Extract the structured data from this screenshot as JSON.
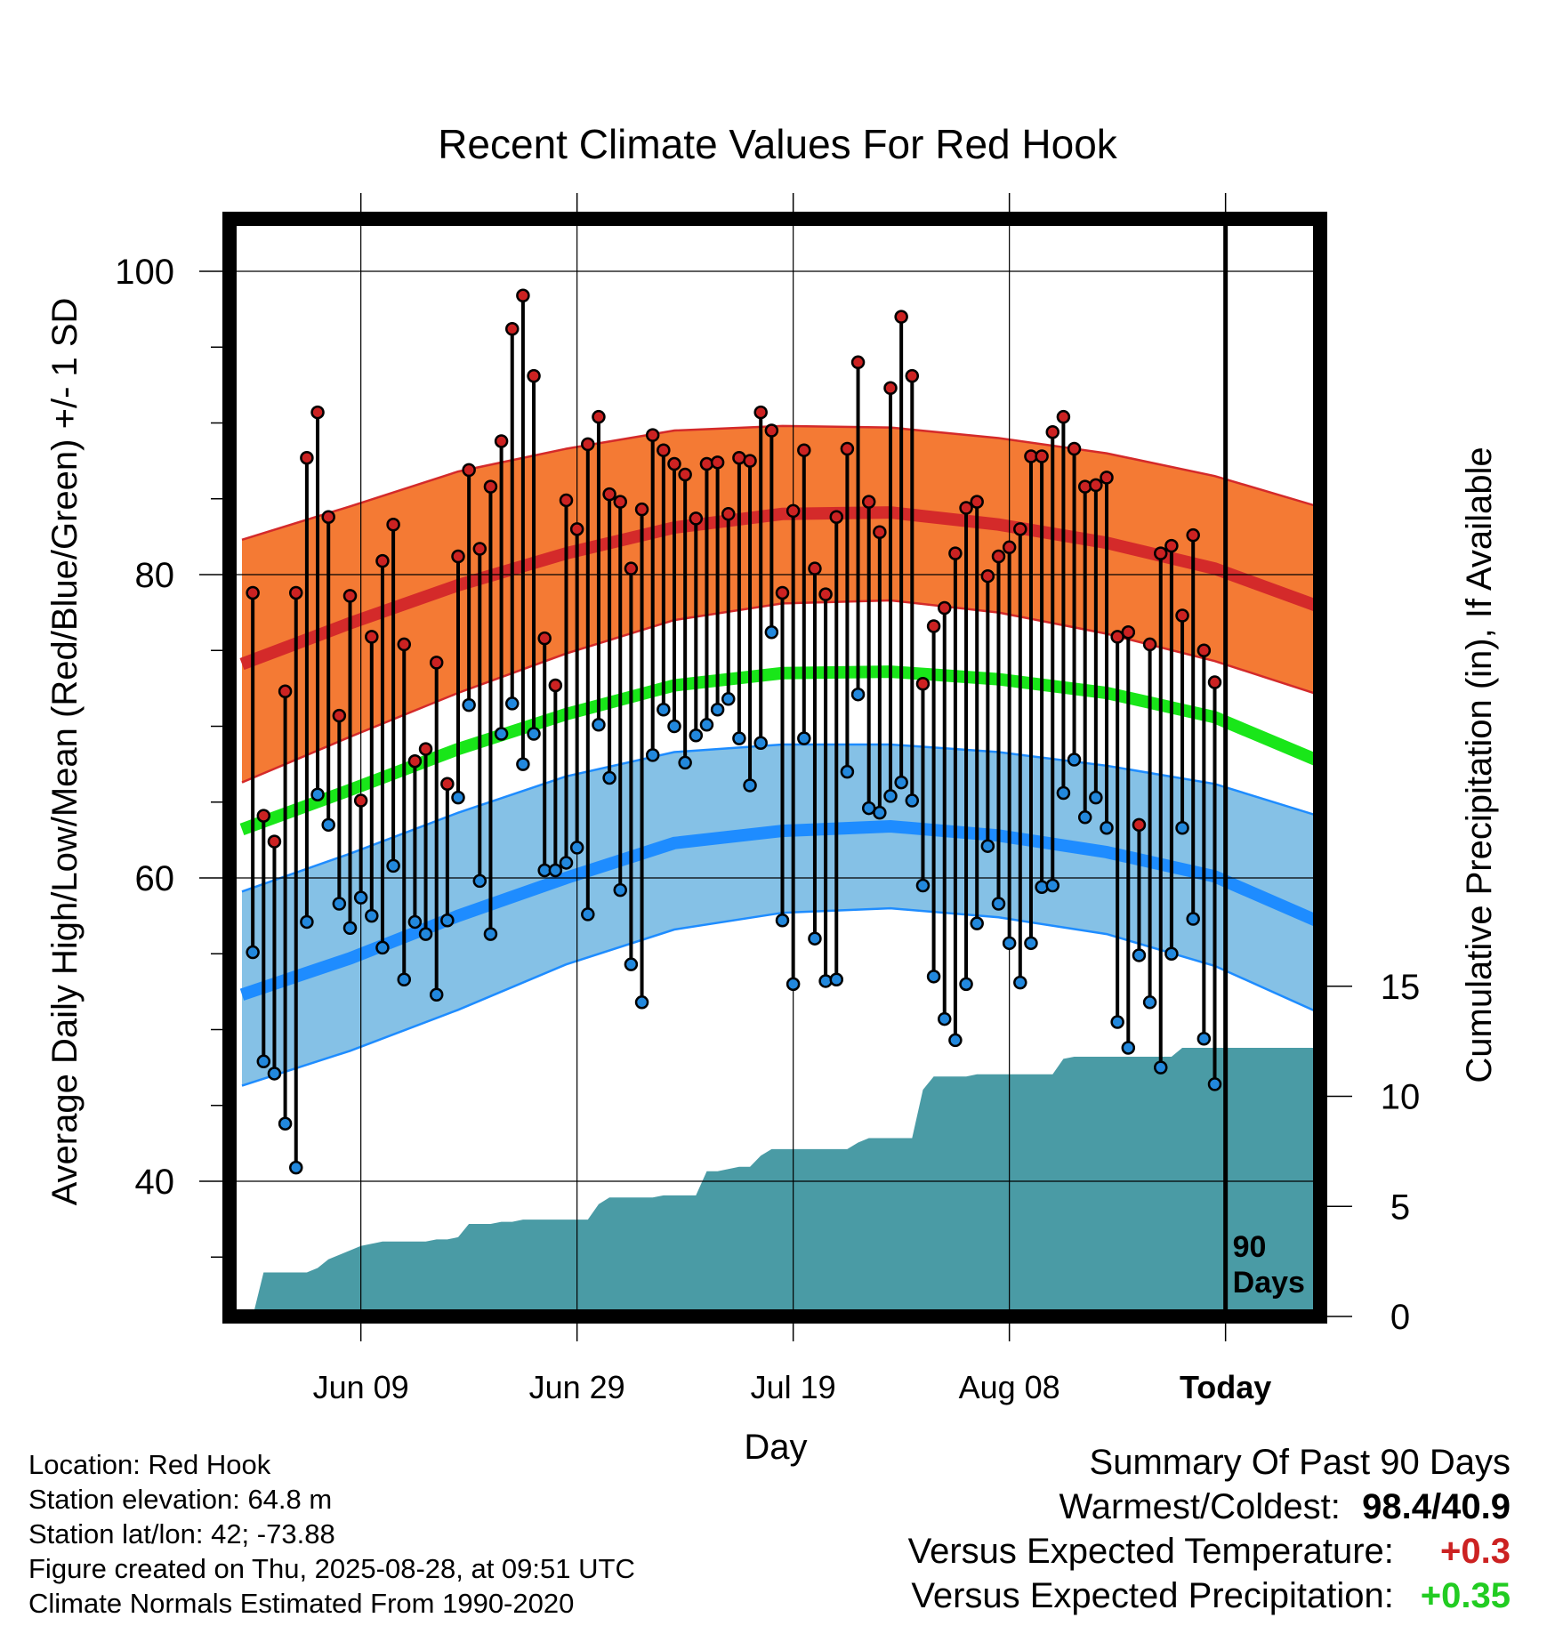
{
  "chart_data": {
    "type": "line",
    "title": "Recent Climate Values For Red Hook",
    "xlabel": "Day",
    "ylabel": "Average Daily High/Low/Mean (Red/Blue/Green) +/- 1 SD",
    "y2label": "Cumulative Precipitation (in), If Available",
    "ylim": [
      31,
      104
    ],
    "y2lim": [
      0,
      20
    ],
    "y_ticks": [
      40,
      60,
      80,
      100
    ],
    "y2_ticks": [
      0,
      5,
      10,
      15
    ],
    "x_tick_labels": [
      "Jun 09",
      "Jun 29",
      "Jul 19",
      "Aug 08",
      "Today"
    ],
    "x_tick_days": [
      11,
      31,
      51,
      71,
      91
    ],
    "x_range_days": [
      0,
      101
    ],
    "today_marker": {
      "day": 91,
      "label_line1": "90",
      "label_line2": "Days"
    },
    "grid": true,
    "colors": {
      "high_line": "#d42a2a",
      "high_band": "#f47a34",
      "low_line": "#1e8cff",
      "low_band": "#85c1e6",
      "mean_line": "#19e619",
      "precip_fill": "#4a9ba5",
      "high_dot": "#cc2222",
      "low_dot": "#2288dd",
      "warm_value": "#cc2222",
      "precip_value": "#22cc22"
    },
    "normal_curve_days": [
      0,
      10,
      20,
      30,
      40,
      50,
      60,
      70,
      80,
      90,
      100
    ],
    "normal_high": [
      74.1,
      76.8,
      79.3,
      81.4,
      83.1,
      84.0,
      84.1,
      83.3,
      82.1,
      80.4,
      77.8
    ],
    "normal_high_sd_upper": [
      82.3,
      84.5,
      86.8,
      88.3,
      89.5,
      89.8,
      89.7,
      89.0,
      88.0,
      86.5,
      84.4
    ],
    "normal_high_sd_lower": [
      66.3,
      69.3,
      72.2,
      74.8,
      77.0,
      78.1,
      78.3,
      77.5,
      76.1,
      74.3,
      72.0
    ],
    "normal_mean": [
      63.2,
      65.8,
      68.5,
      70.8,
      72.7,
      73.5,
      73.6,
      73.1,
      72.2,
      70.6,
      67.6
    ],
    "normal_low": [
      52.3,
      54.7,
      57.5,
      60.0,
      62.3,
      63.1,
      63.4,
      62.8,
      61.7,
      60.1,
      57.0
    ],
    "normal_low_sd_upper": [
      59.1,
      61.6,
      64.3,
      66.7,
      68.3,
      68.8,
      68.8,
      68.3,
      67.4,
      66.2,
      64.0
    ],
    "normal_low_sd_lower": [
      46.3,
      48.6,
      51.3,
      54.3,
      56.6,
      57.7,
      58.0,
      57.4,
      56.3,
      54.2,
      51.0
    ],
    "series": [
      {
        "name": "Daily High",
        "days": [
          1,
          2,
          3,
          4,
          5,
          6,
          7,
          8,
          9,
          10,
          11,
          12,
          13,
          14,
          15,
          16,
          17,
          18,
          19,
          20,
          21,
          22,
          23,
          24,
          25,
          26,
          27,
          28,
          29,
          30,
          31,
          32,
          33,
          34,
          35,
          36,
          37,
          38,
          39,
          40,
          41,
          42,
          43,
          44,
          45,
          46,
          47,
          48,
          49,
          50,
          51,
          52,
          53,
          54,
          55,
          56,
          57,
          58,
          59,
          60,
          61,
          62,
          63,
          64,
          65,
          66,
          67,
          68,
          69,
          70,
          71,
          72,
          73,
          74,
          75,
          76,
          77,
          78,
          79,
          80,
          81,
          82,
          83,
          84,
          85,
          86,
          87,
          88,
          89,
          90
        ],
        "values": [
          78.8,
          64.1,
          62.4,
          72.3,
          78.8,
          87.7,
          90.7,
          83.8,
          70.7,
          78.6,
          65.1,
          75.9,
          80.9,
          83.3,
          75.4,
          67.7,
          68.5,
          74.2,
          66.2,
          81.2,
          86.9,
          81.7,
          85.8,
          88.8,
          96.2,
          98.4,
          93.1,
          75.8,
          72.7,
          84.9,
          83.0,
          88.6,
          90.4,
          85.3,
          84.8,
          80.4,
          84.3,
          89.2,
          88.2,
          87.3,
          86.6,
          83.7,
          87.3,
          87.4,
          84.0,
          87.7,
          87.5,
          90.7,
          89.5,
          78.8,
          84.2,
          88.2,
          80.4,
          78.7,
          83.8,
          88.3,
          94.0,
          84.8,
          82.8,
          92.3,
          97.0,
          93.1,
          72.8,
          76.6,
          77.8,
          81.4,
          84.4,
          84.8,
          79.9,
          81.2,
          81.8,
          83.0,
          87.8,
          87.8,
          89.4,
          90.4,
          88.3,
          85.8,
          85.9,
          86.4,
          75.9,
          76.2,
          63.5,
          75.4,
          81.4,
          81.9,
          77.3,
          82.6,
          75.0,
          72.9
        ]
      },
      {
        "name": "Daily Low",
        "days": [
          1,
          2,
          3,
          4,
          5,
          6,
          7,
          8,
          9,
          10,
          11,
          12,
          13,
          14,
          15,
          16,
          17,
          18,
          19,
          20,
          21,
          22,
          23,
          24,
          25,
          26,
          27,
          28,
          29,
          30,
          31,
          32,
          33,
          34,
          35,
          36,
          37,
          38,
          39,
          40,
          41,
          42,
          43,
          44,
          45,
          46,
          47,
          48,
          49,
          50,
          51,
          52,
          53,
          54,
          55,
          56,
          57,
          58,
          59,
          60,
          61,
          62,
          63,
          64,
          65,
          66,
          67,
          68,
          69,
          70,
          71,
          72,
          73,
          74,
          75,
          76,
          77,
          78,
          79,
          80,
          81,
          82,
          83,
          84,
          85,
          86,
          87,
          88,
          89,
          90
        ],
        "values": [
          55.1,
          47.9,
          47.1,
          43.8,
          40.9,
          57.1,
          65.5,
          63.5,
          58.3,
          56.7,
          58.7,
          57.5,
          55.4,
          60.8,
          53.3,
          57.1,
          56.3,
          52.3,
          57.2,
          65.3,
          71.4,
          59.8,
          56.3,
          69.5,
          71.5,
          67.5,
          69.5,
          60.5,
          60.5,
          61.0,
          62.0,
          57.6,
          70.1,
          66.6,
          59.2,
          54.3,
          51.8,
          68.1,
          71.1,
          70.0,
          67.6,
          69.4,
          70.1,
          71.1,
          71.8,
          69.2,
          66.1,
          68.9,
          76.2,
          57.2,
          53.0,
          69.2,
          56.0,
          53.2,
          53.3,
          67.0,
          72.1,
          64.6,
          64.3,
          65.4,
          66.3,
          65.1,
          59.5,
          53.5,
          50.7,
          49.3,
          53.0,
          57.0,
          62.1,
          58.3,
          55.7,
          53.1,
          55.7,
          59.4,
          59.5,
          65.6,
          67.8,
          64.0,
          65.3,
          63.3,
          50.5,
          48.8,
          54.9,
          51.8,
          47.5,
          55.0,
          63.3,
          57.3,
          49.4,
          46.4
        ]
      },
      {
        "name": "Cumulative Precipitation",
        "days": [
          0,
          1,
          2,
          3,
          4,
          5,
          6,
          7,
          8,
          9,
          10,
          11,
          12,
          13,
          14,
          15,
          16,
          17,
          18,
          19,
          20,
          21,
          22,
          23,
          24,
          25,
          26,
          27,
          28,
          29,
          30,
          31,
          32,
          33,
          34,
          35,
          36,
          37,
          38,
          39,
          40,
          41,
          42,
          43,
          44,
          45,
          46,
          47,
          48,
          49,
          50,
          51,
          52,
          53,
          54,
          55,
          56,
          57,
          58,
          59,
          60,
          61,
          62,
          63,
          64,
          65,
          66,
          67,
          68,
          69,
          70,
          71,
          72,
          73,
          74,
          75,
          76,
          77,
          78,
          79,
          80,
          81,
          82,
          83,
          84,
          85,
          86,
          87,
          88,
          89,
          90,
          91,
          100
        ],
        "values": [
          0.0,
          0.0,
          2.0,
          2.0,
          2.0,
          2.0,
          2.0,
          2.2,
          2.6,
          2.8,
          3.0,
          3.2,
          3.3,
          3.4,
          3.4,
          3.4,
          3.4,
          3.4,
          3.5,
          3.5,
          3.6,
          4.2,
          4.2,
          4.2,
          4.3,
          4.3,
          4.4,
          4.4,
          4.4,
          4.4,
          4.4,
          4.4,
          4.4,
          5.1,
          5.4,
          5.4,
          5.4,
          5.4,
          5.4,
          5.5,
          5.5,
          5.5,
          5.5,
          6.6,
          6.6,
          6.7,
          6.8,
          6.8,
          7.3,
          7.6,
          7.6,
          7.6,
          7.6,
          7.6,
          7.6,
          7.6,
          7.6,
          7.9,
          8.1,
          8.1,
          8.1,
          8.1,
          8.1,
          10.3,
          10.9,
          10.9,
          10.9,
          10.9,
          11.0,
          11.0,
          11.0,
          11.0,
          11.0,
          11.0,
          11.0,
          11.0,
          11.7,
          11.8,
          11.8,
          11.8,
          11.8,
          11.8,
          11.8,
          11.8,
          11.8,
          11.8,
          11.8,
          12.2,
          12.2,
          12.2,
          12.2,
          12.2,
          12.2
        ]
      }
    ]
  },
  "footer": {
    "location": "Location: Red Hook",
    "elevation": "Station elevation: 64.8 m",
    "latlon": "Station lat/lon: 42; -73.88",
    "created": "Figure created on Thu, 2025-08-28, at 09:51 UTC",
    "normals": "Climate Normals Estimated From 1990-2020"
  },
  "summary": {
    "heading": "Summary Of Past 90 Days",
    "warm_cold_label": "Warmest/Coldest:",
    "warm_cold_value": "98.4/40.9",
    "temp_label": "Versus Expected Temperature:",
    "temp_value": "+0.3",
    "precip_label": "Versus Expected Precipitation:",
    "precip_value": "+0.35"
  }
}
